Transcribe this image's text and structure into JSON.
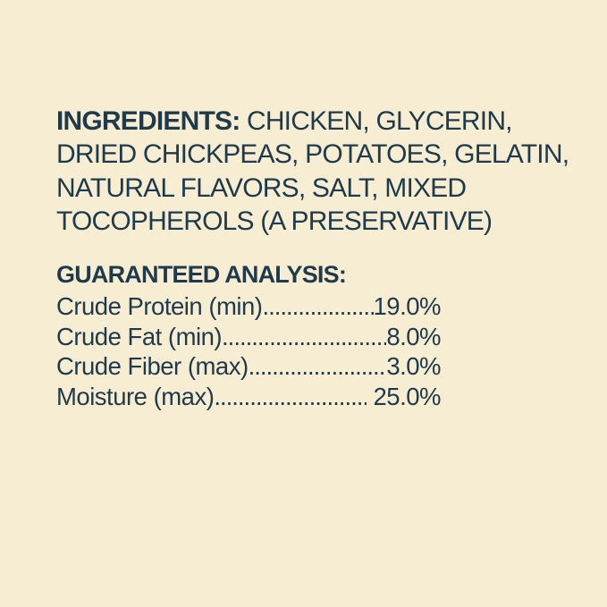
{
  "theme": {
    "background": "#F7EDD3",
    "text": "#1F3A4B"
  },
  "ingredients": {
    "heading": "INGREDIENTS:",
    "line1_rest": " CHICKEN, GLYCERIN,",
    "lines": [
      "DRIED CHICKPEAS, POTATOES, GELATIN,",
      "NATURAL FLAVORS, SALT, MIXED",
      "TOCOPHEROLS (A PRESERVATIVE)"
    ]
  },
  "guaranteed_analysis": {
    "heading": "GUARANTEED ANALYSIS:",
    "dot_leader": "............................................................",
    "rows": [
      {
        "label": "Crude Protein (min)",
        "value": "19.0%"
      },
      {
        "label": "Crude Fat (min)",
        "value": "8.0%"
      },
      {
        "label": "Crude Fiber (max)",
        "value": "3.0%"
      },
      {
        "label": "Moisture (max)",
        "value": " 25.0%"
      }
    ]
  }
}
